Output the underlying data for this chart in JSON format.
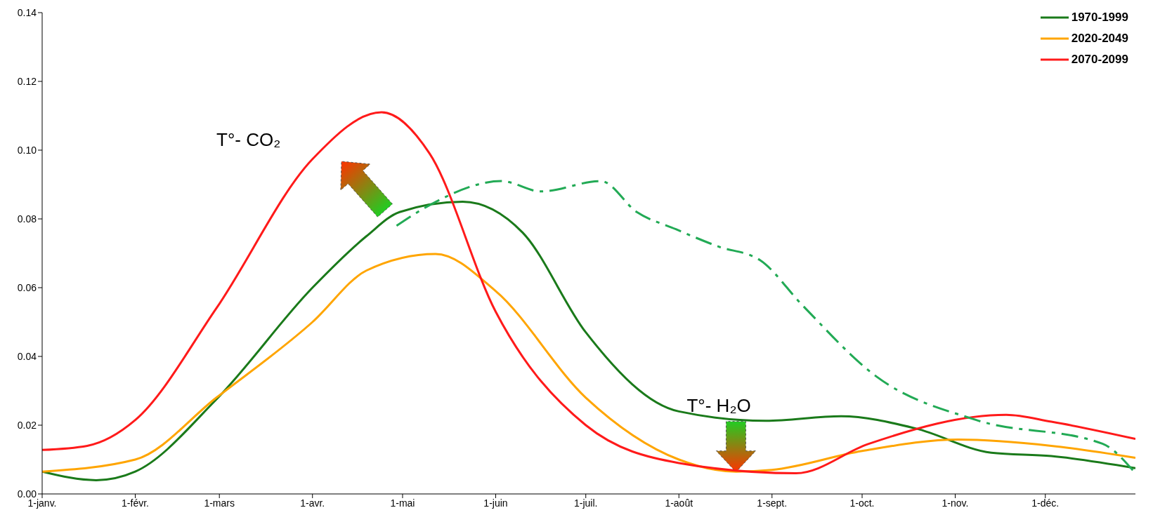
{
  "chart_data": {
    "type": "line",
    "xlim": [
      "--01-01",
      "--12-31"
    ],
    "ylim": [
      0,
      0.14
    ],
    "xticks": [
      {
        "value": "--01-01",
        "label": "1-janv."
      },
      {
        "value": "--02-01",
        "label": "1-févr."
      },
      {
        "value": "--03-01",
        "label": "1-mars"
      },
      {
        "value": "--04-01",
        "label": "1-avr."
      },
      {
        "value": "--05-01",
        "label": "1-mai"
      },
      {
        "value": "--06-01",
        "label": "1-juin"
      },
      {
        "value": "--07-01",
        "label": "1-juil."
      },
      {
        "value": "--08-01",
        "label": "1-août"
      },
      {
        "value": "--09-01",
        "label": "1-sept."
      },
      {
        "value": "--10-01",
        "label": "1-oct."
      },
      {
        "value": "--11-01",
        "label": "1-nov."
      },
      {
        "value": "--12-01",
        "label": "1-déc."
      }
    ],
    "yticks": [
      {
        "value": 0,
        "label": "0.00"
      },
      {
        "value": 0.02,
        "label": "0.02"
      },
      {
        "value": 0.04,
        "label": "0.04"
      },
      {
        "value": 0.06,
        "label": "0.06"
      },
      {
        "value": 0.08,
        "label": "0.08"
      },
      {
        "value": 0.1,
        "label": "0.10"
      },
      {
        "value": 0.12,
        "label": "0.12"
      },
      {
        "value": 0.14,
        "label": "0.14"
      }
    ],
    "grid": false,
    "legend": "top right",
    "marker": "none",
    "annotations": [
      "T°- CO₂",
      {
        "text": "T°- H₂O",
        "x": "--08-20",
        "y": 0.0215
      }
    ],
    "series": [
      {
        "name": "1970-1999",
        "color": "#1a7a1a",
        "x": [
          "--01-01",
          "--01-19",
          "--02-01",
          "--02-28",
          "--04-01",
          "--04-19",
          "--04-30",
          "--05-21",
          "--06-10",
          "--07-01",
          "--08-01",
          "--08-30",
          "--09-24",
          "--10-19",
          "--11-13",
          "--12-03",
          "--12-31"
        ],
        "values": [
          0.0065,
          0.004,
          0.0065,
          0.0275,
          0.06,
          0.075,
          0.082,
          0.085,
          0.076,
          0.047,
          0.024,
          0.0213,
          0.0226,
          0.019,
          0.012,
          0.011,
          0.0075
        ]
      },
      {
        "name": "2020-2049",
        "color": "#ffa500",
        "x": [
          "--01-01",
          "--02-01",
          "--02-28",
          "--04-01",
          "--04-19",
          "--05-12",
          "--06-01",
          "--07-01",
          "--08-01",
          "--08-20",
          "--09-01",
          "--10-01",
          "--11-02",
          "--12-03",
          "--12-31"
        ],
        "values": [
          0.0065,
          0.01,
          0.028,
          0.05,
          0.065,
          0.0698,
          0.059,
          0.028,
          0.01,
          0.0065,
          0.007,
          0.0125,
          0.0158,
          0.014,
          0.0105
        ]
      },
      {
        "name": "2070-2099",
        "color": "#ff1a1a",
        "x": [
          "--01-01",
          "--01-16",
          "--02-01",
          "--02-28",
          "--04-01",
          "--04-24",
          "--05-10",
          "--06-01",
          "--07-01",
          "--08-01",
          "--09-09",
          "--10-03",
          "--11-18",
          "--12-03",
          "--12-31"
        ],
        "values": [
          0.0128,
          0.014,
          0.0215,
          0.054,
          0.0974,
          0.111,
          0.099,
          0.053,
          0.02,
          0.009,
          0.006,
          0.0145,
          0.023,
          0.021,
          0.016
        ]
      },
      {
        "color": "#22aa55",
        "line_style": "dashed",
        "x": [
          "--04-29",
          "--05-10",
          "--06-03",
          "--06-16",
          "--07-06",
          "--07-18",
          "--07-31",
          "--08-14",
          "--08-28",
          "--09-11",
          "--10-06",
          "--11-08",
          "--12-20",
          "--12-31"
        ],
        "values": [
          0.078,
          0.084,
          0.091,
          0.088,
          0.091,
          0.082,
          0.077,
          0.072,
          0.068,
          0.055,
          0.034,
          0.0215,
          0.0146,
          0.006
        ]
      }
    ]
  }
}
